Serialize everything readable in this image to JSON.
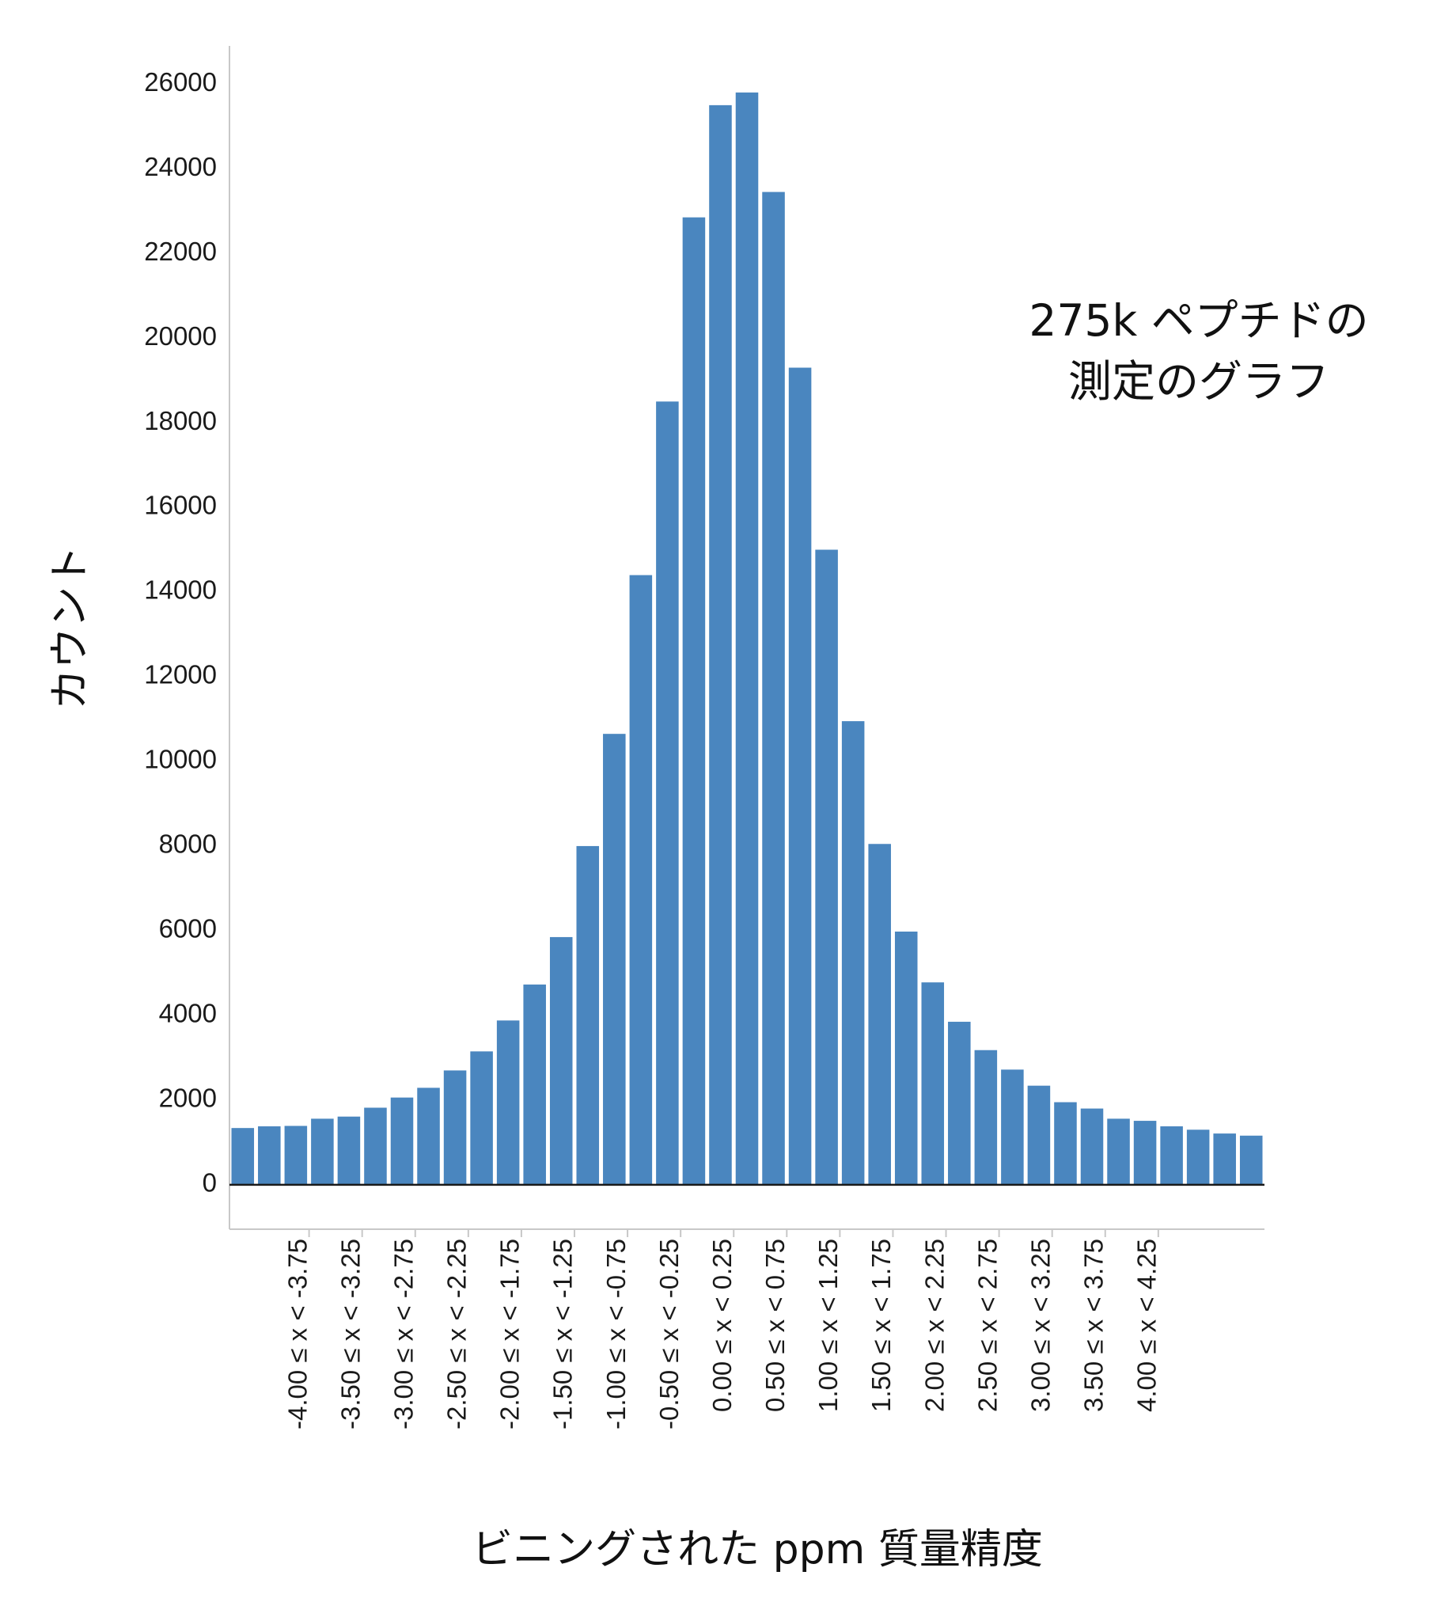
{
  "chart_data": {
    "type": "bar",
    "title": "",
    "xlabel": "ビニングされた ppm 質量精度",
    "ylabel": "カウント",
    "annotation_lines": [
      "275k ペプチドの",
      "測定のグラフ"
    ],
    "ylim": [
      -1050,
      26900
    ],
    "yticks": [
      0,
      2000,
      4000,
      6000,
      8000,
      10000,
      12000,
      14000,
      16000,
      18000,
      20000,
      22000,
      24000,
      26000
    ],
    "grid": false,
    "legend": "none",
    "bar_color": "#4a86bf",
    "values": [
      1340,
      1380,
      1390,
      1560,
      1610,
      1820,
      2060,
      2290,
      2700,
      3150,
      3880,
      4730,
      5850,
      8000,
      10650,
      14400,
      18500,
      22850,
      25500,
      25800,
      23450,
      19300,
      15000,
      10950,
      8050,
      5980,
      4780,
      3850,
      3180,
      2720,
      2340,
      1950,
      1800,
      1560,
      1510,
      1380,
      1300,
      1210,
      1160
    ],
    "bin_labels": [
      {
        "bar_index": 2,
        "label": "-4.00 ≤ x < -3.75"
      },
      {
        "bar_index": 4,
        "label": "-3.50 ≤ x < -3.25"
      },
      {
        "bar_index": 6,
        "label": "-3.00 ≤ x < -2.75"
      },
      {
        "bar_index": 8,
        "label": "-2.50 ≤ x < -2.25"
      },
      {
        "bar_index": 10,
        "label": "-2.00 ≤ x < -1.75"
      },
      {
        "bar_index": 12,
        "label": "-1.50 ≤ x < -1.25"
      },
      {
        "bar_index": 14,
        "label": "-1.00 ≤ x < -0.75"
      },
      {
        "bar_index": 16,
        "label": "-0.50 ≤ x < -0.25"
      },
      {
        "bar_index": 18,
        "label": "0.00 ≤ x < 0.25"
      },
      {
        "bar_index": 20,
        "label": "0.50 ≤ x < 0.75"
      },
      {
        "bar_index": 22,
        "label": "1.00 ≤ x < 1.25"
      },
      {
        "bar_index": 24,
        "label": "1.50 ≤ x < 1.75"
      },
      {
        "bar_index": 26,
        "label": "2.00 ≤ x < 2.25"
      },
      {
        "bar_index": 28,
        "label": "2.50 ≤ x < 2.75"
      },
      {
        "bar_index": 30,
        "label": "3.00 ≤ x < 3.25"
      },
      {
        "bar_index": 32,
        "label": "3.50 ≤ x < 3.75"
      },
      {
        "bar_index": 34,
        "label": "4.00 ≤ x < 4.25"
      }
    ]
  }
}
